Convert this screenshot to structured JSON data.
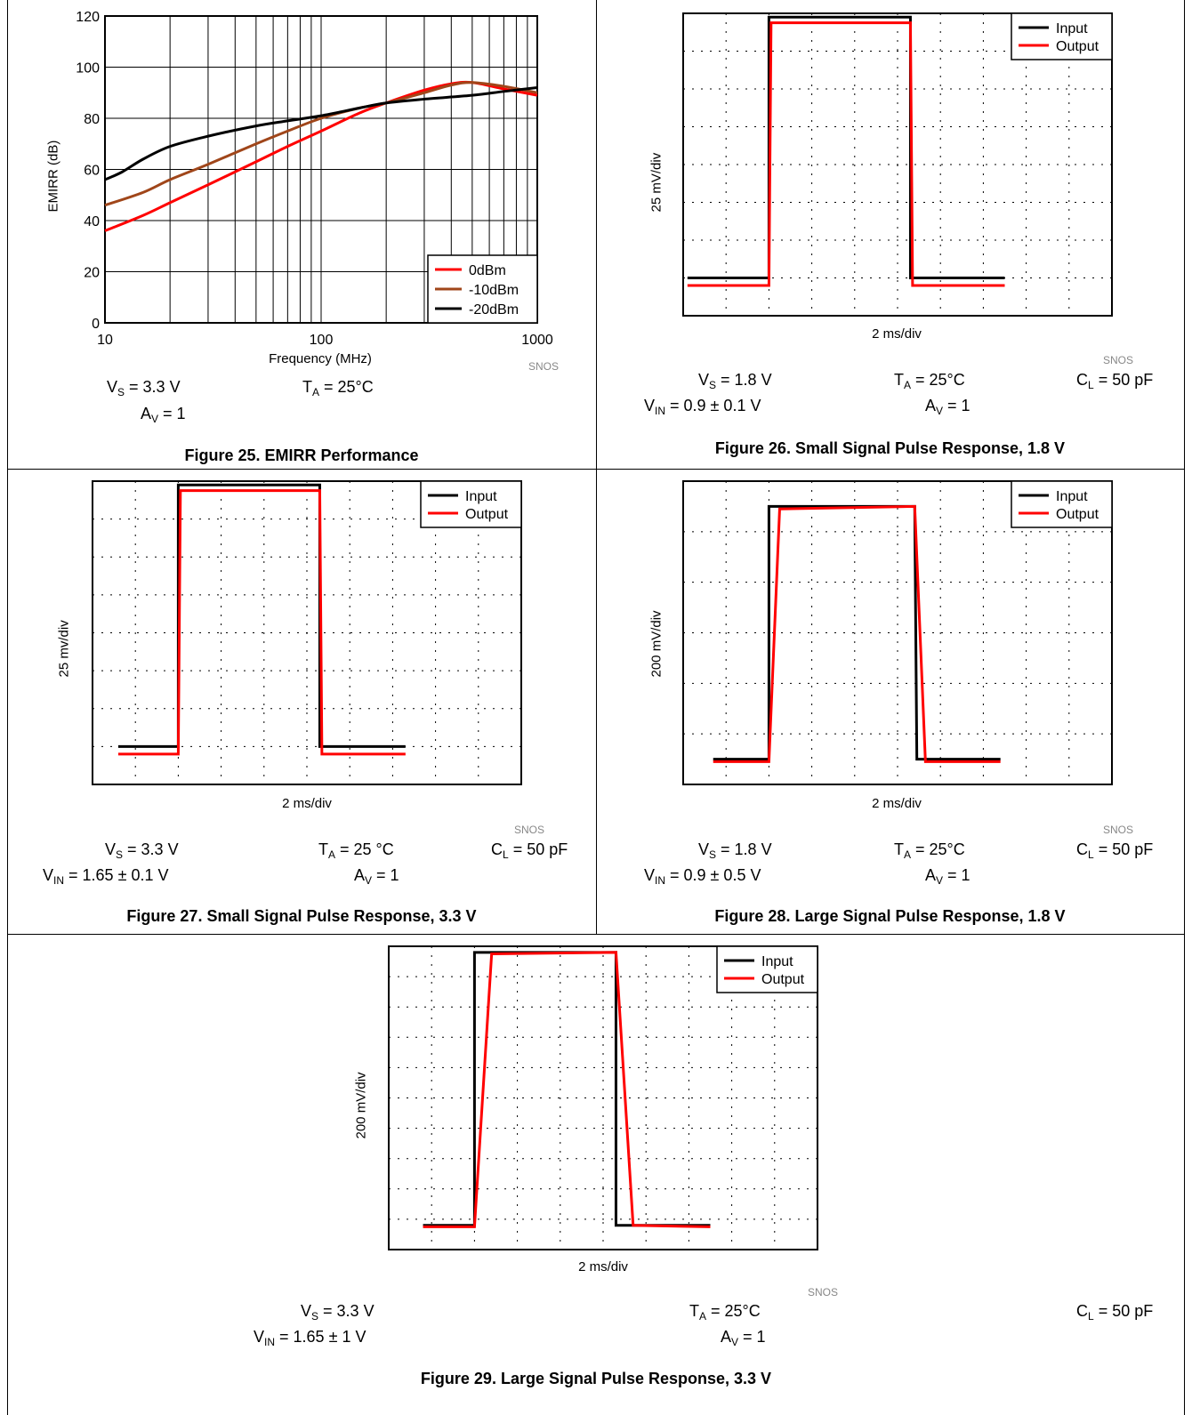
{
  "colors": {
    "black": "#000000",
    "red": "#ff0000",
    "brown": "#a0461a"
  },
  "fig25": {
    "caption": "Figure 25. EMIRR Performance",
    "snos": "SNOS",
    "cond": {
      "vs_pre": "V",
      "vs_sub": "S",
      "vs_post": " = 3.3 V",
      "ta_pre": "T",
      "ta_sub": "A",
      "ta_post": " = 25°C",
      "av_pre": "A",
      "av_sub": "V",
      "av_post": " = 1"
    }
  },
  "fig26": {
    "caption": "Figure 26. Small Signal Pulse Response, 1.8 V",
    "snos": "SNOS",
    "cond": {
      "vs_pre": "V",
      "vs_sub": "S",
      "vs_post": " = 1.8 V",
      "ta_pre": "T",
      "ta_sub": "A",
      "ta_post": " = 25°C",
      "cl_pre": "C",
      "cl_sub": "L",
      "cl_post": " = 50 pF",
      "vin_pre": "V",
      "vin_sub": "IN",
      "vin_post": " = 0.9 ± 0.1 V",
      "av_pre": "A",
      "av_sub": "V",
      "av_post": " = 1"
    }
  },
  "fig27": {
    "caption": "Figure 27. Small Signal Pulse Response, 3.3 V",
    "snos": "SNOS",
    "cond": {
      "vs_pre": "V",
      "vs_sub": "S",
      "vs_post": " = 3.3 V",
      "ta_pre": "T",
      "ta_sub": "A",
      "ta_post": " = 25 °C",
      "cl_pre": "C",
      "cl_sub": "L",
      "cl_post": " = 50 pF",
      "vin_pre": "V",
      "vin_sub": "IN",
      "vin_post": " = 1.65 ± 0.1 V",
      "av_pre": "A",
      "av_sub": "V",
      "av_post": " = 1"
    }
  },
  "fig28": {
    "caption": "Figure 28. Large Signal Pulse Response, 1.8 V",
    "snos": "SNOS",
    "cond": {
      "vs_pre": "V",
      "vs_sub": "S",
      "vs_post": " = 1.8 V",
      "ta_pre": "T",
      "ta_sub": "A",
      "ta_post": " = 25°C",
      "cl_pre": "C",
      "cl_sub": "L",
      "cl_post": " = 50 pF",
      "vin_pre": "V",
      "vin_sub": "IN",
      "vin_post": " = 0.9 ± 0.5 V",
      "av_pre": "A",
      "av_sub": "V",
      "av_post": " = 1"
    }
  },
  "fig29": {
    "caption": "Figure 29. Large Signal Pulse Response, 3.3 V",
    "snos": "SNOS",
    "cond": {
      "vs_pre": "V",
      "vs_sub": "S",
      "vs_post": " = 3.3 V",
      "ta_pre": "T",
      "ta_sub": "A",
      "ta_post": " = 25°C",
      "cl_pre": "C",
      "cl_sub": "L",
      "cl_post": " = 50 pF",
      "vin_pre": "V",
      "vin_sub": "IN",
      "vin_post": " = 1.65 ± 1 V",
      "av_pre": "A",
      "av_sub": "V",
      "av_post": " = 1"
    }
  },
  "chart_data": [
    {
      "id": "fig25",
      "type": "line",
      "xlabel": "Frequency (MHz)",
      "ylabel": "EMIRR (dB)",
      "xscale": "log",
      "xlim": [
        10,
        1000
      ],
      "ylim": [
        0,
        120
      ],
      "xticks": [
        "10",
        "100",
        "1000"
      ],
      "yticks": [
        "0",
        "20",
        "40",
        "60",
        "80",
        "100",
        "120"
      ],
      "grid": true,
      "legend": "bottom-right",
      "series": [
        {
          "name": "0dBm",
          "color": "#ff0000",
          "x": [
            10,
            15,
            20,
            30,
            50,
            70,
            100,
            150,
            200,
            300,
            400,
            500,
            700,
            1000
          ],
          "y": [
            36,
            42,
            47,
            54,
            63,
            69,
            75,
            82,
            86,
            91,
            93.5,
            94,
            91.5,
            89
          ]
        },
        {
          "name": "-10dBm",
          "color": "#a0461a",
          "x": [
            10,
            15,
            20,
            30,
            50,
            70,
            100,
            150,
            200,
            300,
            400,
            500,
            700,
            1000
          ],
          "y": [
            46,
            51,
            56,
            62,
            70,
            75,
            80,
            84,
            86,
            90,
            93,
            94,
            92.5,
            90
          ]
        },
        {
          "name": "-20dBm",
          "color": "#000000",
          "x": [
            10,
            12,
            15,
            20,
            30,
            50,
            70,
            100,
            150,
            200,
            300,
            500,
            700,
            1000
          ],
          "y": [
            56,
            59,
            64,
            69,
            73,
            77,
            79,
            81,
            84,
            86,
            87.5,
            89,
            90.5,
            92
          ]
        }
      ]
    },
    {
      "id": "fig26",
      "type": "line",
      "xlabel": "2 ms/div",
      "ylabel": "25 mV/div",
      "legend": "top-right",
      "divisions": {
        "x": 10,
        "y": 8
      },
      "xlim": [
        0,
        10
      ],
      "ylim": [
        0,
        8
      ],
      "series": [
        {
          "name": "Input",
          "color": "#000000",
          "x": [
            0.1,
            2.0,
            2.0,
            5.3,
            5.3,
            7.5
          ],
          "y": [
            1.0,
            1.0,
            7.9,
            7.9,
            1.0,
            1.0
          ]
        },
        {
          "name": "Output",
          "color": "#ff0000",
          "x": [
            0.1,
            2.0,
            2.05,
            5.3,
            5.35,
            7.5
          ],
          "y": [
            0.8,
            0.8,
            7.75,
            7.75,
            0.8,
            0.8
          ]
        }
      ]
    },
    {
      "id": "fig27",
      "type": "line",
      "xlabel": "2 ms/div",
      "ylabel": "25 mv/div",
      "legend": "top-right",
      "divisions": {
        "x": 10,
        "y": 8
      },
      "xlim": [
        0,
        10
      ],
      "ylim": [
        0,
        8
      ],
      "series": [
        {
          "name": "Input",
          "color": "#000000",
          "x": [
            0.6,
            2.0,
            2.0,
            5.3,
            5.3,
            7.3
          ],
          "y": [
            1.0,
            1.0,
            7.9,
            7.9,
            1.0,
            1.0
          ]
        },
        {
          "name": "Output",
          "color": "#ff0000",
          "x": [
            0.6,
            2.0,
            2.05,
            5.3,
            5.35,
            7.3
          ],
          "y": [
            0.8,
            0.8,
            7.75,
            7.75,
            0.8,
            0.8
          ]
        }
      ]
    },
    {
      "id": "fig28",
      "type": "line",
      "xlabel": "2 ms/div",
      "ylabel": "200 mV/div",
      "legend": "top-right",
      "divisions": {
        "x": 10,
        "y": 6
      },
      "xlim": [
        0,
        10
      ],
      "ylim": [
        0,
        6
      ],
      "series": [
        {
          "name": "Input",
          "color": "#000000",
          "x": [
            0.7,
            2.0,
            2.0,
            5.4,
            5.45,
            7.4
          ],
          "y": [
            0.5,
            0.5,
            5.5,
            5.5,
            0.5,
            0.5
          ]
        },
        {
          "name": "Output",
          "color": "#ff0000",
          "x": [
            0.7,
            2.0,
            2.25,
            5.4,
            5.65,
            7.4
          ],
          "y": [
            0.45,
            0.45,
            5.45,
            5.5,
            0.45,
            0.45
          ]
        }
      ]
    },
    {
      "id": "fig29",
      "type": "line",
      "xlabel": "2 ms/div",
      "ylabel": "200 mV/div",
      "legend": "top-right",
      "divisions": {
        "x": 10,
        "y": 10
      },
      "xlim": [
        0,
        10
      ],
      "ylim": [
        0,
        10
      ],
      "series": [
        {
          "name": "Input",
          "color": "#000000",
          "x": [
            0.8,
            2.0,
            2.0,
            5.3,
            5.3,
            7.5
          ],
          "y": [
            0.8,
            0.8,
            9.8,
            9.8,
            0.8,
            0.8
          ]
        },
        {
          "name": "Output",
          "color": "#ff0000",
          "x": [
            0.8,
            2.0,
            2.4,
            5.3,
            5.7,
            7.5
          ],
          "y": [
            0.75,
            0.75,
            9.75,
            9.8,
            0.8,
            0.75
          ]
        }
      ]
    }
  ]
}
